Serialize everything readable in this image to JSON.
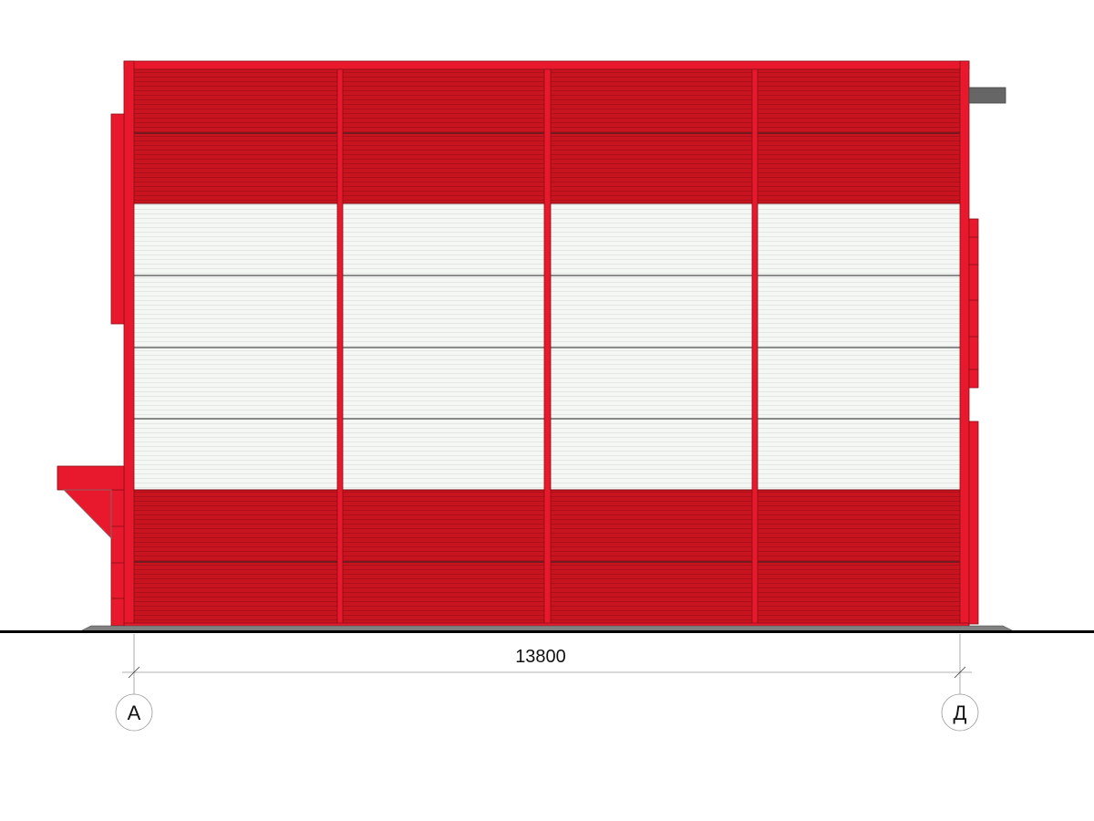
{
  "drawing": {
    "dimension_label": "13800",
    "axis_left": "А",
    "axis_right": "Д"
  },
  "colors": {
    "red_frame": "#e8192c",
    "red_panel": "#c8141f",
    "white_panel": "#f3f6f3",
    "ground": "#000000",
    "plinth": "#808080",
    "flue": "#666666"
  }
}
